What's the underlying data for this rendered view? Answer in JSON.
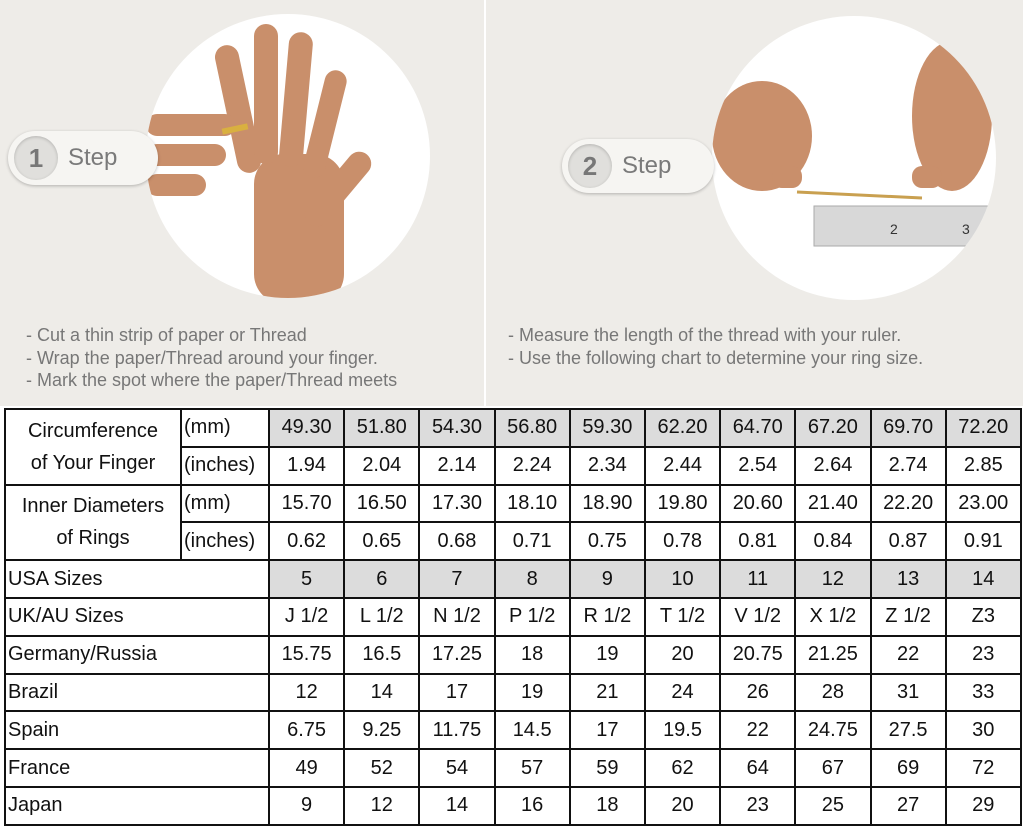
{
  "step1": {
    "number": "1",
    "label": "Step",
    "notes": [
      "- Cut a thin strip of paper or Thread",
      "- Wrap the paper/Thread around your finger.",
      "- Mark the spot where the paper/Thread meets"
    ]
  },
  "step2": {
    "number": "2",
    "label": "Step",
    "notes": [
      "- Measure the length of the thread with your ruler.",
      "- Use the following chart to determine your ring size."
    ]
  },
  "table": {
    "circumference": {
      "label_line1": "Circumference",
      "label_line2": "of Your Finger",
      "unit_mm": "(mm)",
      "unit_in": "(inches)",
      "mm": [
        "49.30",
        "51.80",
        "54.30",
        "56.80",
        "59.30",
        "62.20",
        "64.70",
        "67.20",
        "69.70",
        "72.20"
      ],
      "inches": [
        "1.94",
        "2.04",
        "2.14",
        "2.24",
        "2.34",
        "2.44",
        "2.54",
        "2.64",
        "2.74",
        "2.85"
      ]
    },
    "inner": {
      "label_line1": "Inner Diameters",
      "label_line2": "of Rings",
      "unit_mm": "(mm)",
      "unit_in": "(inches)",
      "mm": [
        "15.70",
        "16.50",
        "17.30",
        "18.10",
        "18.90",
        "19.80",
        "20.60",
        "21.40",
        "22.20",
        "23.00"
      ],
      "inches": [
        "0.62",
        "0.65",
        "0.68",
        "0.71",
        "0.75",
        "0.78",
        "0.81",
        "0.84",
        "0.87",
        "0.91"
      ]
    },
    "rows": [
      {
        "label": "USA Sizes",
        "values": [
          "5",
          "6",
          "7",
          "8",
          "9",
          "10",
          "11",
          "12",
          "13",
          "14"
        ],
        "shaded": true
      },
      {
        "label": "UK/AU Sizes",
        "values": [
          "J 1/2",
          "L 1/2",
          "N 1/2",
          "P 1/2",
          "R 1/2",
          "T 1/2",
          "V 1/2",
          "X 1/2",
          "Z 1/2",
          "Z3"
        ]
      },
      {
        "label": "Germany/Russia",
        "values": [
          "15.75",
          "16.5",
          "17.25",
          "18",
          "19",
          "20",
          "20.75",
          "21.25",
          "22",
          "23"
        ]
      },
      {
        "label": "Brazil",
        "values": [
          "12",
          "14",
          "17",
          "19",
          "21",
          "24",
          "26",
          "28",
          "31",
          "33"
        ]
      },
      {
        "label": "Spain",
        "values": [
          "6.75",
          "9.25",
          "11.75",
          "14.5",
          "17",
          "19.5",
          "22",
          "24.75",
          "27.5",
          "30"
        ]
      },
      {
        "label": "France",
        "values": [
          "49",
          "52",
          "54",
          "57",
          "59",
          "62",
          "64",
          "67",
          "69",
          "72"
        ]
      },
      {
        "label": "Japan",
        "values": [
          "9",
          "12",
          "14",
          "16",
          "18",
          "20",
          "23",
          "25",
          "27",
          "29"
        ]
      }
    ],
    "shade_color": "#dcdcdc"
  }
}
